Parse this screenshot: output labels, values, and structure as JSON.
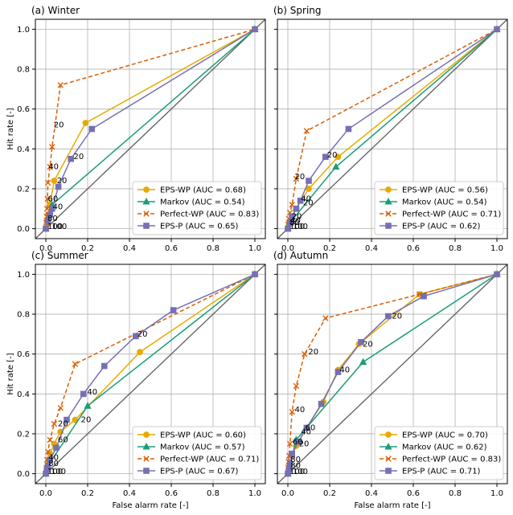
{
  "figure": {
    "colors": {
      "EPS-WP": "#e6ab02",
      "Markov": "#1b9e77",
      "Perfect-WP": "#d95f02",
      "EPS-P": "#7570b3",
      "diagonal": "#666666",
      "grid": "#b0b0b0"
    },
    "markers": {
      "EPS-WP": "circle",
      "Markov": "triangle",
      "Perfect-WP": "x",
      "EPS-P": "square"
    }
  },
  "chart_data": [
    {
      "type": "line",
      "title": "(a) Winter",
      "xlabel": "",
      "ylabel": "Hit rate [-]",
      "xlim": [
        -0.05,
        1.05
      ],
      "ylim": [
        -0.05,
        1.05
      ],
      "xticks": [
        "0.0",
        "0.2",
        "0.4",
        "0.6",
        "0.8",
        "1.0"
      ],
      "yticks": [
        "0.0",
        "0.2",
        "0.4",
        "0.6",
        "0.8",
        "1.0"
      ],
      "series": [
        {
          "name": "EPS-WP",
          "legend": "EPS-WP (AUC = 0.68)",
          "x": [
            0,
            0.005,
            0.01,
            0.02,
            0.04,
            0.19,
            1
          ],
          "y": [
            0,
            0.03,
            0.07,
            0.12,
            0.24,
            0.53,
            1
          ]
        },
        {
          "name": "Markov",
          "legend": "Markov (AUC = 0.54)",
          "x": [
            0,
            0.03,
            1
          ],
          "y": [
            0,
            0.12,
            1
          ]
        },
        {
          "name": "Perfect-WP",
          "legend": "Perfect-WP (AUC = 0.83)",
          "x": [
            0,
            0.002,
            0.004,
            0.006,
            0.008,
            0.01,
            0.02,
            0.03,
            0.07,
            1
          ],
          "y": [
            0,
            0.03,
            0.06,
            0.1,
            0.15,
            0.23,
            0.31,
            0.41,
            0.72,
            1
          ],
          "dashed": true
        },
        {
          "name": "EPS-P",
          "legend": "EPS-P (AUC = 0.65)",
          "x": [
            0,
            0.01,
            0.02,
            0.03,
            0.06,
            0.12,
            0.22,
            1
          ],
          "y": [
            0,
            0.04,
            0.07,
            0.1,
            0.21,
            0.35,
            0.5,
            1
          ]
        }
      ],
      "annotations": [
        {
          "text": "20",
          "x": 0.03,
          "y": 0.52
        },
        {
          "text": "40",
          "x": 0.005,
          "y": 0.31
        },
        {
          "text": "60",
          "x": 0.002,
          "y": 0.15
        },
        {
          "text": "20",
          "x": 0.045,
          "y": 0.24
        },
        {
          "text": "40",
          "x": 0.025,
          "y": 0.11
        },
        {
          "text": "20",
          "x": 0.125,
          "y": 0.36
        },
        {
          "text": "80",
          "x": 0.0,
          "y": 0.05
        },
        {
          "text": "100",
          "x": 0.0,
          "y": 0.01
        },
        {
          "text": "100",
          "x": 0.02,
          "y": 0.01
        }
      ]
    },
    {
      "type": "line",
      "title": "(b) Spring",
      "xlabel": "",
      "ylabel": "",
      "xlim": [
        -0.05,
        1.05
      ],
      "ylim": [
        -0.05,
        1.05
      ],
      "xticks": [
        "0.0",
        "0.2",
        "0.4",
        "0.6",
        "0.8",
        "1.0"
      ],
      "yticks": [],
      "series": [
        {
          "name": "EPS-WP",
          "legend": "EPS-WP (AUC = 0.56)",
          "x": [
            0,
            0.005,
            0.01,
            0.02,
            0.04,
            0.1,
            0.24,
            1
          ],
          "y": [
            0,
            0.02,
            0.04,
            0.06,
            0.1,
            0.2,
            0.36,
            1
          ]
        },
        {
          "name": "Markov",
          "legend": "Markov (AUC = 0.54)",
          "x": [
            0,
            0.01,
            0.23,
            1
          ],
          "y": [
            0,
            0.03,
            0.31,
            1
          ]
        },
        {
          "name": "Perfect-WP",
          "legend": "Perfect-WP (AUC = 0.71)",
          "x": [
            0,
            0.002,
            0.005,
            0.01,
            0.02,
            0.04,
            0.09,
            1
          ],
          "y": [
            0,
            0.02,
            0.05,
            0.08,
            0.12,
            0.25,
            0.49,
            1
          ],
          "dashed": true
        },
        {
          "name": "EPS-P",
          "legend": "EPS-P (AUC = 0.62)",
          "x": [
            0,
            0.01,
            0.02,
            0.04,
            0.06,
            0.1,
            0.18,
            0.29,
            1
          ],
          "y": [
            0,
            0.03,
            0.06,
            0.1,
            0.14,
            0.24,
            0.36,
            0.5,
            1
          ]
        }
      ],
      "annotations": [
        {
          "text": "20",
          "x": 0.025,
          "y": 0.26
        },
        {
          "text": "40",
          "x": 0.055,
          "y": 0.15
        },
        {
          "text": "20",
          "x": 0.065,
          "y": 0.13
        },
        {
          "text": "20",
          "x": 0.18,
          "y": 0.37
        },
        {
          "text": "20",
          "x": 0.01,
          "y": 0.06
        },
        {
          "text": "40",
          "x": 0.005,
          "y": 0.04
        },
        {
          "text": "80",
          "x": 0.0,
          "y": 0.03
        },
        {
          "text": "100",
          "x": 0.0,
          "y": 0.01
        },
        {
          "text": "100",
          "x": 0.015,
          "y": 0.01
        }
      ]
    },
    {
      "type": "line",
      "title": "(c) Summer",
      "xlabel": "False alarm rate [-]",
      "ylabel": "Hit rate [-]",
      "xlim": [
        -0.05,
        1.05
      ],
      "ylim": [
        -0.05,
        1.05
      ],
      "xticks": [
        "0.0",
        "0.2",
        "0.4",
        "0.6",
        "0.8",
        "1.0"
      ],
      "yticks": [
        "0.0",
        "0.2",
        "0.4",
        "0.6",
        "0.8",
        "1.0"
      ],
      "series": [
        {
          "name": "EPS-WP",
          "legend": "EPS-WP (AUC = 0.60)",
          "x": [
            0,
            0.005,
            0.01,
            0.02,
            0.04,
            0.07,
            0.14,
            0.45,
            1
          ],
          "y": [
            0,
            0.03,
            0.06,
            0.1,
            0.15,
            0.21,
            0.27,
            0.61,
            1
          ]
        },
        {
          "name": "Markov",
          "legend": "Markov (AUC = 0.57)",
          "x": [
            0,
            0.01,
            0.2,
            1
          ],
          "y": [
            0,
            0.04,
            0.34,
            1
          ]
        },
        {
          "name": "Perfect-WP",
          "legend": "Perfect-WP (AUC = 0.71)",
          "x": [
            0,
            0.003,
            0.006,
            0.01,
            0.02,
            0.04,
            0.07,
            0.14,
            1
          ],
          "y": [
            0,
            0.03,
            0.07,
            0.11,
            0.17,
            0.25,
            0.33,
            0.55,
            1
          ],
          "dashed": true
        },
        {
          "name": "EPS-P",
          "legend": "EPS-P (AUC = 0.67)",
          "x": [
            0,
            0.005,
            0.01,
            0.02,
            0.05,
            0.1,
            0.18,
            0.28,
            0.43,
            0.61,
            1
          ],
          "y": [
            0,
            0.02,
            0.04,
            0.07,
            0.13,
            0.27,
            0.4,
            0.54,
            0.69,
            0.82,
            1
          ]
        }
      ],
      "annotations": [
        {
          "text": "20",
          "x": 0.16,
          "y": 0.27
        },
        {
          "text": "60",
          "x": 0.05,
          "y": 0.17
        },
        {
          "text": "20",
          "x": 0.05,
          "y": 0.25
        },
        {
          "text": "40",
          "x": 0.19,
          "y": 0.41
        },
        {
          "text": "20",
          "x": 0.43,
          "y": 0.7
        },
        {
          "text": "40",
          "x": 0.005,
          "y": 0.08
        },
        {
          "text": "80",
          "x": 0.005,
          "y": 0.05
        },
        {
          "text": "100",
          "x": 0.0,
          "y": 0.01
        },
        {
          "text": "100",
          "x": 0.015,
          "y": 0.01
        }
      ]
    },
    {
      "type": "line",
      "title": "(d) Autumn",
      "xlabel": "False alarm rate [-]",
      "ylabel": "",
      "xlim": [
        -0.05,
        1.05
      ],
      "ylim": [
        -0.05,
        1.05
      ],
      "xticks": [
        "0.0",
        "0.2",
        "0.4",
        "0.6",
        "0.8",
        "1.0"
      ],
      "yticks": [],
      "series": [
        {
          "name": "EPS-WP",
          "legend": "EPS-WP (AUC = 0.70)",
          "x": [
            0,
            0.005,
            0.01,
            0.02,
            0.04,
            0.09,
            0.17,
            0.24,
            0.34,
            0.63,
            1
          ],
          "y": [
            0,
            0.02,
            0.05,
            0.09,
            0.14,
            0.23,
            0.36,
            0.52,
            0.65,
            0.9,
            1
          ]
        },
        {
          "name": "Markov",
          "legend": "Markov (AUC = 0.62)",
          "x": [
            0,
            0.04,
            0.36,
            1
          ],
          "y": [
            0,
            0.17,
            0.56,
            1
          ]
        },
        {
          "name": "Perfect-WP",
          "legend": "Perfect-WP (AUC = 0.83)",
          "x": [
            0,
            0.002,
            0.004,
            0.006,
            0.01,
            0.02,
            0.04,
            0.08,
            0.18,
            0.63,
            1
          ],
          "y": [
            0,
            0.03,
            0.06,
            0.09,
            0.15,
            0.31,
            0.44,
            0.6,
            0.78,
            0.9,
            1
          ],
          "dashed": true
        },
        {
          "name": "EPS-P",
          "legend": "EPS-P (AUC = 0.71)",
          "x": [
            0,
            0.005,
            0.01,
            0.02,
            0.05,
            0.09,
            0.16,
            0.24,
            0.35,
            0.48,
            0.65,
            1
          ],
          "y": [
            0,
            0.02,
            0.05,
            0.1,
            0.16,
            0.23,
            0.35,
            0.51,
            0.66,
            0.79,
            0.89,
            1
          ]
        }
      ],
      "annotations": [
        {
          "text": "20",
          "x": 0.09,
          "y": 0.61
        },
        {
          "text": "40",
          "x": 0.025,
          "y": 0.32
        },
        {
          "text": "60",
          "x": 0.075,
          "y": 0.23
        },
        {
          "text": "60",
          "x": 0.015,
          "y": 0.16
        },
        {
          "text": "40",
          "x": 0.055,
          "y": 0.21
        },
        {
          "text": "20",
          "x": 0.045,
          "y": 0.15
        },
        {
          "text": "20",
          "x": 0.35,
          "y": 0.65
        },
        {
          "text": "40",
          "x": 0.24,
          "y": 0.52
        },
        {
          "text": "20",
          "x": 0.49,
          "y": 0.79
        },
        {
          "text": "80",
          "x": 0.005,
          "y": 0.07
        },
        {
          "text": "80",
          "x": 0.005,
          "y": 0.04
        },
        {
          "text": "100",
          "x": 0.0,
          "y": 0.01
        },
        {
          "text": "100",
          "x": 0.015,
          "y": 0.01
        }
      ]
    }
  ]
}
